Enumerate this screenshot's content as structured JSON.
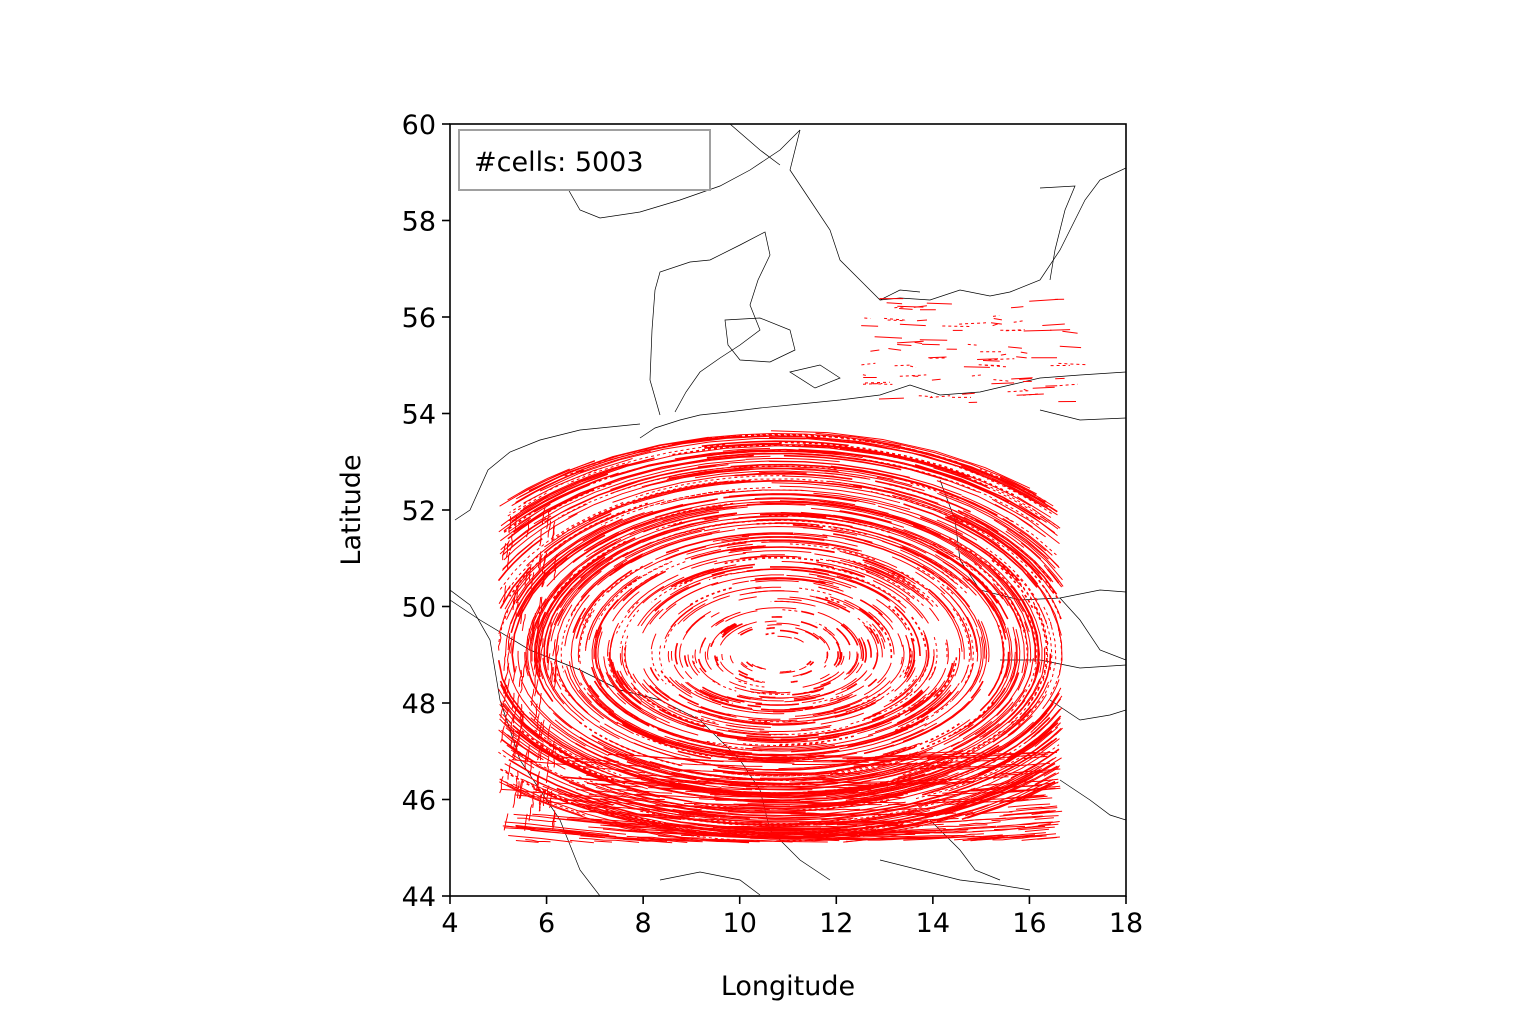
{
  "chart_data": {
    "type": "line",
    "title": "",
    "xlabel": "Longitude",
    "ylabel": "Latitude",
    "xlim": [
      4,
      18
    ],
    "ylim": [
      44,
      60
    ],
    "xticks": [
      4,
      6,
      8,
      10,
      12,
      14,
      16,
      18
    ],
    "yticks": [
      44,
      46,
      48,
      50,
      52,
      54,
      56,
      58,
      60
    ],
    "xtick_labels": [
      "4",
      "6",
      "8",
      "10",
      "12",
      "14",
      "16",
      "18"
    ],
    "ytick_labels": [
      "44",
      "46",
      "48",
      "50",
      "52",
      "54",
      "56",
      "58",
      "60"
    ],
    "grid": false,
    "legend": {
      "text": "#cells: 5003",
      "placement": "top-left"
    },
    "track_color": "#ff0000",
    "coastline_color": "#000000",
    "series": [
      {
        "values_description_free": true,
        "domain": {
          "lon_min": 5.0,
          "lon_max": 16.7,
          "lat_min": 45.1,
          "lat_max": 54.2
        },
        "vortex_center": {
          "lon": 10.8,
          "lat": 49.0
        }
      }
    ]
  }
}
